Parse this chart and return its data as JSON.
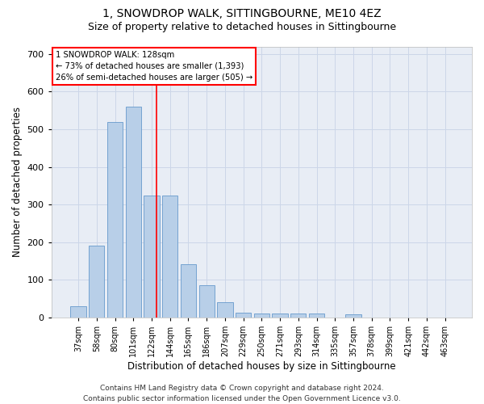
{
  "title1": "1, SNOWDROP WALK, SITTINGBOURNE, ME10 4EZ",
  "title2": "Size of property relative to detached houses in Sittingbourne",
  "xlabel": "Distribution of detached houses by size in Sittingbourne",
  "ylabel": "Number of detached properties",
  "footnote": "Contains HM Land Registry data © Crown copyright and database right 2024.\nContains public sector information licensed under the Open Government Licence v3.0.",
  "categories": [
    "37sqm",
    "58sqm",
    "80sqm",
    "101sqm",
    "122sqm",
    "144sqm",
    "165sqm",
    "186sqm",
    "207sqm",
    "229sqm",
    "250sqm",
    "271sqm",
    "293sqm",
    "314sqm",
    "335sqm",
    "357sqm",
    "378sqm",
    "399sqm",
    "421sqm",
    "442sqm",
    "463sqm"
  ],
  "values": [
    30,
    190,
    520,
    560,
    325,
    325,
    142,
    86,
    40,
    13,
    10,
    10,
    10,
    10,
    0,
    8,
    0,
    0,
    0,
    0,
    0
  ],
  "bar_color": "#b8cfe8",
  "bar_edge_color": "#6699cc",
  "red_line_x": 4.27,
  "annotation_box_text": "1 SNOWDROP WALK: 128sqm\n← 73% of detached houses are smaller (1,393)\n26% of semi-detached houses are larger (505) →",
  "ylim": [
    0,
    720
  ],
  "yticks": [
    0,
    100,
    200,
    300,
    400,
    500,
    600,
    700
  ],
  "grid_color": "#ccd6e8",
  "bg_color": "#e8edf5",
  "title1_fontsize": 10,
  "title2_fontsize": 9,
  "xlabel_fontsize": 8.5,
  "ylabel_fontsize": 8.5,
  "footnote_fontsize": 6.5
}
